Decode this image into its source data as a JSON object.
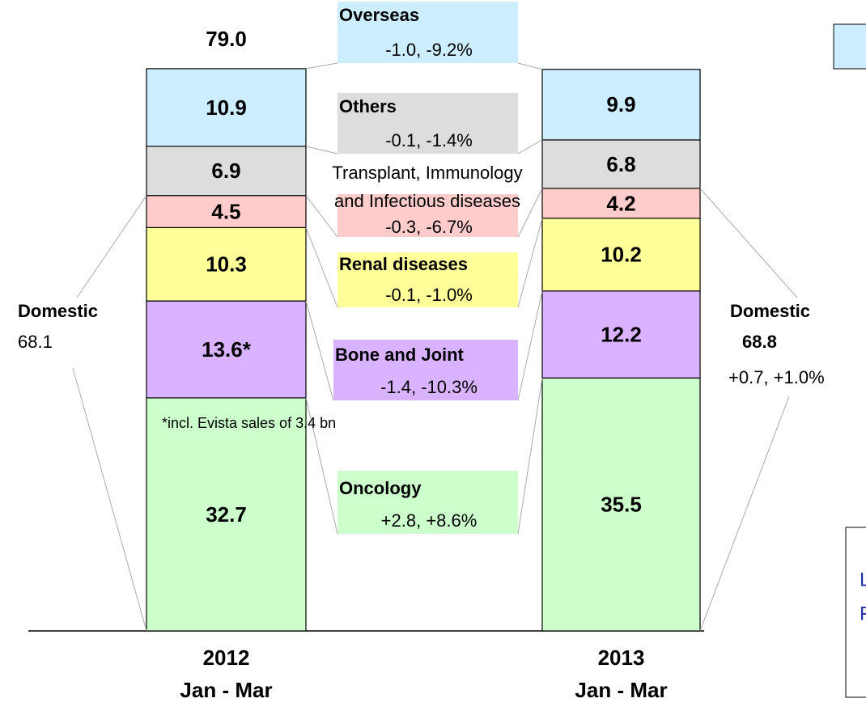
{
  "chart_data": {
    "type": "stacked-bar",
    "categories": [
      "2012|Jan - Mar",
      "2013|Jan - Mar"
    ],
    "series": [
      {
        "name": [
          "Oncology"
        ],
        "color": "#ccffcc",
        "values": [
          32.7,
          35.5
        ],
        "change": "+2.8, +8.6%"
      },
      {
        "name": [
          "Bone and Joint"
        ],
        "color": "#d9b3ff",
        "values": [
          13.6,
          12.2
        ],
        "value_labels": [
          "13.6*",
          "12.2"
        ],
        "change": "-1.4, -10.3%"
      },
      {
        "name": [
          "Renal diseases"
        ],
        "color": "#ffff99",
        "values": [
          10.3,
          10.2
        ],
        "change": "-0.1, -1.0%"
      },
      {
        "name": [
          "Transplant, Immunology",
          "and Infectious diseases"
        ],
        "color": "#ffcccc",
        "values": [
          4.5,
          4.2
        ],
        "change": "-0.3, -6.7%"
      },
      {
        "name": [
          "Others"
        ],
        "color": "#dddddd",
        "values": [
          6.9,
          6.8
        ],
        "change": "-0.1, -1.4%"
      },
      {
        "name": [
          "Overseas"
        ],
        "color": "#cceeff",
        "values": [
          10.9,
          9.9
        ],
        "change": "-1.0, -9.2%"
      }
    ],
    "totals": [
      79.0,
      null
    ],
    "totals_labels": [
      "79.0",
      null
    ],
    "domestic": [
      {
        "label": "Domestic",
        "value": 68.1,
        "value_label": "68.1"
      },
      {
        "label": "Domestic",
        "value": 68.8,
        "value_label": "68.8",
        "change": "+0.7, +1.0%"
      }
    ],
    "footnote": "*incl. Evista sales of 3.4 bn",
    "cutoff_box": {
      "lines": [
        "L",
        "F"
      ]
    }
  }
}
